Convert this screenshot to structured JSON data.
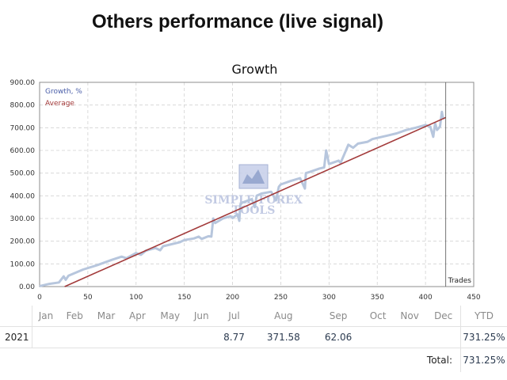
{
  "page_title": "Others performance (live signal)",
  "chart_data": {
    "type": "line",
    "title": "Growth",
    "xlim": [
      0,
      450
    ],
    "ylim": [
      0,
      900
    ],
    "x_ticks": [
      "0",
      "50",
      "100",
      "150",
      "200",
      "250",
      "300",
      "350",
      "400",
      "450"
    ],
    "y_ticks": [
      "0.00",
      "100.00",
      "200.00",
      "300.00",
      "400.00",
      "500.00",
      "600.00",
      "700.00",
      "800.00",
      "900.00"
    ],
    "legend": [
      "Growth, %",
      "Average"
    ],
    "marker_label": "Trades",
    "marker_x": 421,
    "watermark": "SIMPLE FOREX TOOLS",
    "series": [
      {
        "name": "Growth, %",
        "color": "#b7c6dd",
        "x": [
          0,
          10,
          20,
          25,
          27,
          30,
          45,
          60,
          75,
          85,
          90,
          100,
          105,
          110,
          120,
          125,
          128,
          135,
          145,
          150,
          160,
          165,
          168,
          175,
          178,
          180,
          182,
          190,
          198,
          200,
          205,
          207,
          208,
          210,
          220,
          223,
          225,
          230,
          240,
          245,
          248,
          250,
          260,
          270,
          275,
          276,
          280,
          290,
          295,
          297,
          300,
          310,
          312,
          318,
          320,
          325,
          330,
          340,
          345,
          350,
          360,
          365,
          370,
          380,
          390,
          400,
          405,
          408,
          410,
          412,
          415,
          417,
          418,
          420
        ],
        "y": [
          2,
          12,
          18,
          45,
          30,
          48,
          75,
          95,
          118,
          132,
          125,
          148,
          140,
          158,
          170,
          160,
          178,
          185,
          195,
          205,
          212,
          220,
          210,
          222,
          220,
          300,
          280,
          300,
          310,
          302,
          318,
          290,
          360,
          370,
          385,
          350,
          400,
          410,
          418,
          380,
          440,
          450,
          465,
          478,
          432,
          500,
          505,
          520,
          525,
          600,
          540,
          555,
          545,
          605,
          625,
          612,
          630,
          638,
          650,
          655,
          665,
          670,
          675,
          690,
          700,
          712,
          705,
          660,
          720,
          690,
          705,
          770,
          745,
          740
        ]
      },
      {
        "name": "Average",
        "color": "#a33b3b",
        "x": [
          26,
          421
        ],
        "y": [
          0,
          745
        ]
      }
    ]
  },
  "table": {
    "month_headers": [
      "Jan",
      "Feb",
      "Mar",
      "Apr",
      "May",
      "Jun",
      "Jul",
      "Aug",
      "Sep",
      "Oct",
      "Nov",
      "Dec"
    ],
    "ytd_header": "YTD",
    "rows": [
      {
        "year": "2021",
        "months": [
          "",
          "",
          "",
          "",
          "",
          "",
          "8.77",
          "371.58",
          "62.06",
          "",
          "",
          ""
        ],
        "ytd": "731.25%"
      }
    ],
    "total_label": "Total:",
    "total_value": "731.25%"
  }
}
